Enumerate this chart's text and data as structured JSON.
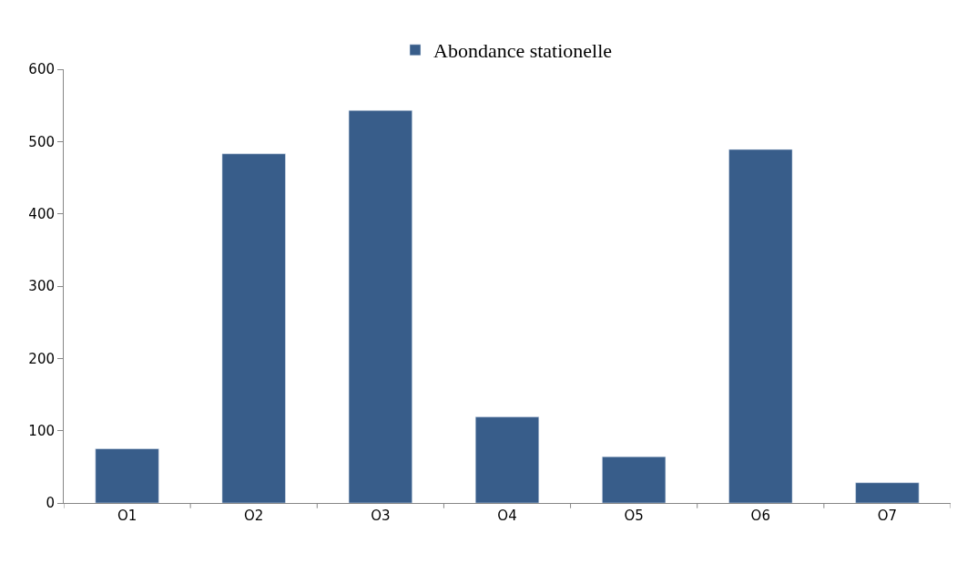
{
  "chart_data": {
    "type": "bar",
    "categories": [
      "O1",
      "O2",
      "O3",
      "O4",
      "O5",
      "O6",
      "O7"
    ],
    "series": [
      {
        "name": "Abondance stationelle",
        "color": "#385d8a",
        "values": [
          75,
          483,
          543,
          119,
          64,
          489,
          28
        ]
      }
    ],
    "ylim": [
      0,
      600
    ],
    "yticks": [
      0,
      100,
      200,
      300,
      400,
      500,
      600
    ],
    "legend": "top"
  }
}
